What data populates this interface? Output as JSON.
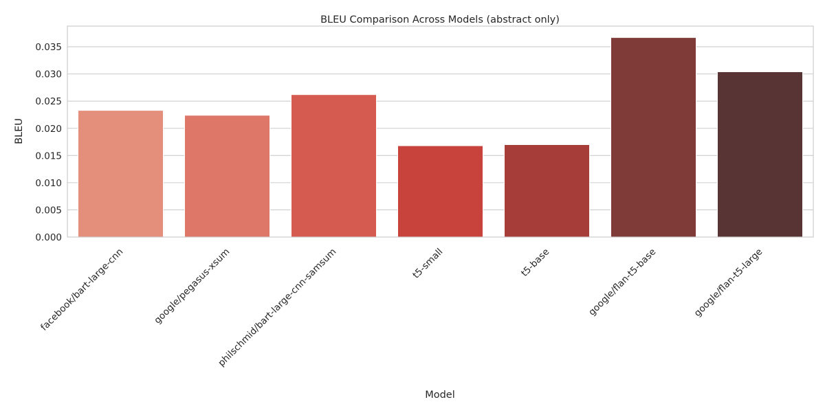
{
  "chart_data": {
    "type": "bar",
    "title": "BLEU Comparison Across Models (abstract only)",
    "xlabel": "Model",
    "ylabel": "BLEU",
    "categories": [
      "facebook/bart-large-cnn",
      "google/pegasus-xsum",
      "philschmid/bart-large-cnn-samsum",
      "t5-small",
      "t5-base",
      "google/flan-t5-base",
      "google/flan-t5-large"
    ],
    "values": [
      0.0233,
      0.0224,
      0.0262,
      0.0168,
      0.017,
      0.0367,
      0.0304
    ],
    "colors": [
      "#e48e7c",
      "#de7767",
      "#d55a50",
      "#c9433d",
      "#a73d38",
      "#7e3b37",
      "#583434"
    ],
    "ylim": [
      0,
      0.0388
    ],
    "yticks": [
      "0.000",
      "0.005",
      "0.010",
      "0.015",
      "0.020",
      "0.025",
      "0.030",
      "0.035"
    ],
    "ytick_values": [
      0,
      0.005,
      0.01,
      0.015,
      0.02,
      0.025,
      0.03,
      0.035
    ],
    "grid": true,
    "legend": "none"
  }
}
